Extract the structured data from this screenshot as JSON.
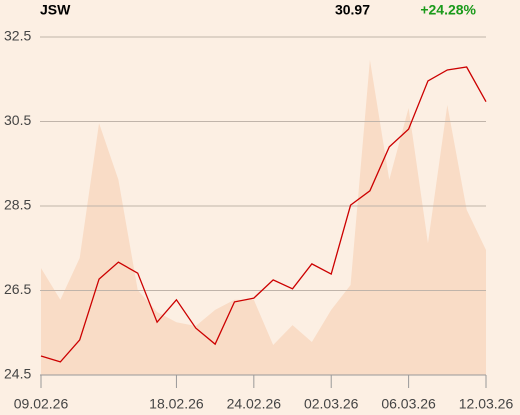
{
  "chart_data": {
    "type": "line",
    "title": "JSW",
    "price_label": "30.97",
    "change_label": "+24.28%",
    "categories": [
      "09.02.26",
      null,
      null,
      null,
      null,
      null,
      null,
      "18.02.26",
      null,
      null,
      null,
      "24.02.26",
      null,
      null,
      null,
      "02.03.26",
      null,
      null,
      null,
      "06.03.26",
      null,
      null,
      null,
      "12.03.26"
    ],
    "series": [
      {
        "type": "area",
        "color": "#f9dcc6",
        "values": [
          27.03,
          26.28,
          27.27,
          30.46,
          29.12,
          26.51,
          25.99,
          25.75,
          25.66,
          26.04,
          26.28,
          26.28,
          25.21,
          25.68,
          25.28,
          26.04,
          26.63,
          31.96,
          29.12,
          30.82,
          27.62,
          30.89,
          28.41,
          27.46
        ]
      },
      {
        "type": "line",
        "color": "#cc0000",
        "values": [
          24.95,
          24.81,
          25.33,
          26.77,
          27.17,
          26.91,
          25.75,
          26.28,
          25.61,
          25.23,
          26.23,
          26.32,
          26.75,
          26.54,
          27.13,
          26.89,
          28.52,
          28.86,
          29.9,
          30.32,
          31.46,
          31.72,
          31.79,
          30.97
        ]
      }
    ],
    "ylim": [
      24.5,
      32.5
    ],
    "yticks": [
      24.5,
      26.5,
      28.5,
      30.5,
      32.5
    ],
    "grid": true,
    "change_color": "#1a9a1a"
  }
}
